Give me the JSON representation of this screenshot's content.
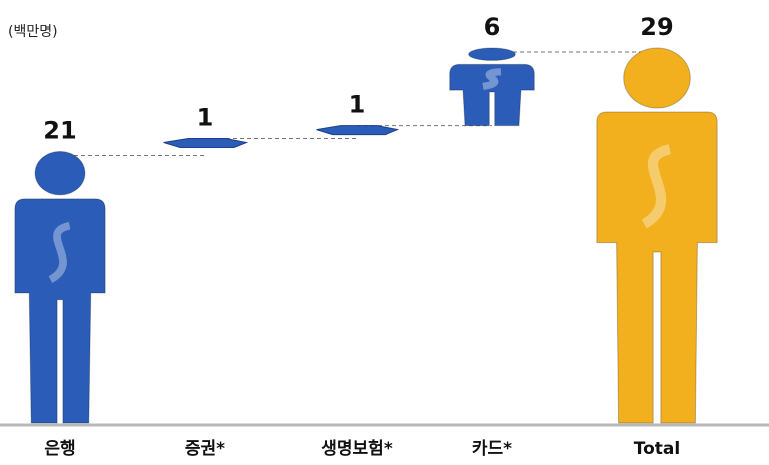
{
  "chart_data": {
    "type": "waterfall",
    "subtitle": "(백만명)",
    "categories": [
      "은행",
      "증권*",
      "생명보험*",
      "카드*",
      "Total"
    ],
    "values": [
      21,
      1,
      1,
      6,
      29
    ],
    "color": "#2a5cb8",
    "total_color": "#f2b01e"
  }
}
